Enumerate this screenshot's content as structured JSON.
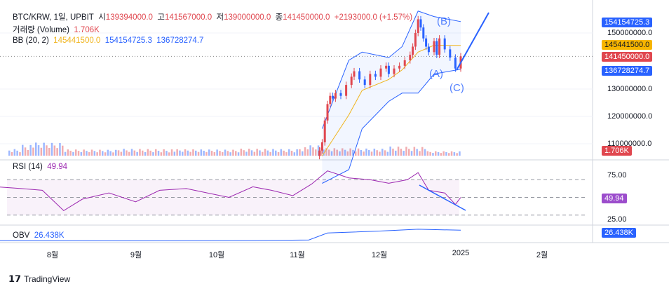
{
  "header": {
    "symbol": "BTC/KRW, 1일, UPBIT",
    "o_label": "시",
    "open": "139394000.0",
    "h_label": "고",
    "high": "141567000.0",
    "l_label": "저",
    "low": "139000000.0",
    "c_label": "종",
    "close": "141450000.0",
    "change": "+2193000.0 (+1.57%)"
  },
  "volume_legend": {
    "label": "거래량 (Volume)",
    "value": "1.706K"
  },
  "bb_legend": {
    "label": "BB (20, 2)",
    "basis": "145441500.0",
    "upper": "154154725.3",
    "lower": "136728274.7"
  },
  "rsi_legend": {
    "label": "RSI (14)",
    "value": "49.94"
  },
  "obv_legend": {
    "label": "OBV",
    "value": "26.438K"
  },
  "price_axis": [
    "150000000.0",
    "130000000.0",
    "120000000.0",
    "110000000.0"
  ],
  "price_tags": {
    "upper": "154154725.3",
    "basis": "145441500.0",
    "last": "141450000.0",
    "lower": "136728274.7",
    "volume": "1.706K"
  },
  "rsi_axis": [
    "75.00",
    "25.00"
  ],
  "rsi_tag": "49.94",
  "obv_tag": "26.438K",
  "x_axis": [
    "8월",
    "9월",
    "10월",
    "11월",
    "12월",
    "2025",
    "2월"
  ],
  "annotations": {
    "b": "(B)",
    "a": "(A)",
    "c": "(C)"
  },
  "footer": {
    "brand": "TradingView"
  },
  "colors": {
    "up": "#e0474f",
    "down": "#2962ff",
    "bb_basis": "#f0b41c",
    "bb_band": "#2962ff",
    "rsi": "#9c27b0",
    "obv": "#2962ff"
  },
  "chart_data": {
    "type": "candlestick",
    "price": {
      "unit": "KRW (millions)",
      "dates": [
        "2024-11-09",
        "2024-11-10",
        "2024-11-11",
        "2024-11-12",
        "2024-11-13",
        "2024-11-14",
        "2024-11-15",
        "2024-11-17",
        "2024-11-19",
        "2024-11-21",
        "2024-11-22",
        "2024-11-24",
        "2024-11-26",
        "2024-11-28",
        "2024-11-30",
        "2024-12-02",
        "2024-12-04",
        "2024-12-05",
        "2024-12-07",
        "2024-12-09",
        "2024-12-11",
        "2024-12-13",
        "2024-12-14",
        "2024-12-15",
        "2024-12-16",
        "2024-12-17",
        "2024-12-18",
        "2024-12-19",
        "2024-12-20",
        "2024-12-22",
        "2024-12-23",
        "2024-12-24",
        "2024-12-26",
        "2024-12-28",
        "2024-12-30",
        "2025-01-01"
      ],
      "close": [
        107,
        110,
        118,
        124,
        127,
        126,
        128,
        127,
        131,
        134,
        136,
        133,
        131,
        135,
        134,
        137,
        138,
        135,
        137,
        138,
        140,
        142,
        145,
        150,
        155,
        152,
        148,
        145,
        143,
        147,
        142,
        148,
        144,
        141,
        137,
        141.45
      ]
    },
    "bollinger": {
      "dates": [
        "2024-11-10",
        "2024-11-20",
        "2024-11-25",
        "2024-12-05",
        "2024-12-10",
        "2024-12-16",
        "2024-12-22",
        "2025-01-01"
      ],
      "upper": [
        115,
        140,
        143,
        141,
        145,
        158,
        156,
        154.15
      ],
      "lower": [
        95,
        100,
        115,
        125,
        128,
        128,
        135,
        136.73
      ]
    },
    "rsi": {
      "dates": [
        "2024-07-11",
        "2024-07-20",
        "2024-07-28",
        "2024-08-05",
        "2024-08-12",
        "2024-08-22",
        "2024-09-01",
        "2024-09-10",
        "2024-09-20",
        "2024-09-28",
        "2024-10-06",
        "2024-10-15",
        "2024-10-22",
        "2024-10-30",
        "2024-11-06",
        "2024-11-12",
        "2024-11-20",
        "2024-11-28",
        "2024-12-05",
        "2024-12-12",
        "2024-12-16",
        "2024-12-20",
        "2024-12-26",
        "2024-12-30",
        "2025-01-01"
      ],
      "values": [
        62,
        60,
        58,
        35,
        48,
        55,
        45,
        58,
        60,
        55,
        50,
        62,
        58,
        52,
        65,
        80,
        72,
        70,
        66,
        70,
        78,
        58,
        55,
        42,
        49.94
      ],
      "ylim": [
        25,
        75
      ]
    },
    "obv": {
      "dates": [
        "2024-07-11",
        "2024-09-01",
        "2024-10-15",
        "2024-11-05",
        "2024-11-12",
        "2024-12-01",
        "2024-12-16",
        "2025-01-01"
      ],
      "values_k": [
        10,
        9.5,
        10,
        11,
        22,
        25,
        28,
        26.438
      ]
    },
    "volume": {
      "dates": [
        "2024-07-20",
        "2024-08-05",
        "2024-08-25",
        "2024-09-15",
        "2024-10-10",
        "2024-11-01",
        "2024-11-11",
        "2024-12-05",
        "2024-12-20",
        "2025-01-01"
      ],
      "values_k": [
        3,
        5,
        2.5,
        3,
        2.5,
        3,
        4,
        3,
        4,
        1.706
      ]
    }
  }
}
